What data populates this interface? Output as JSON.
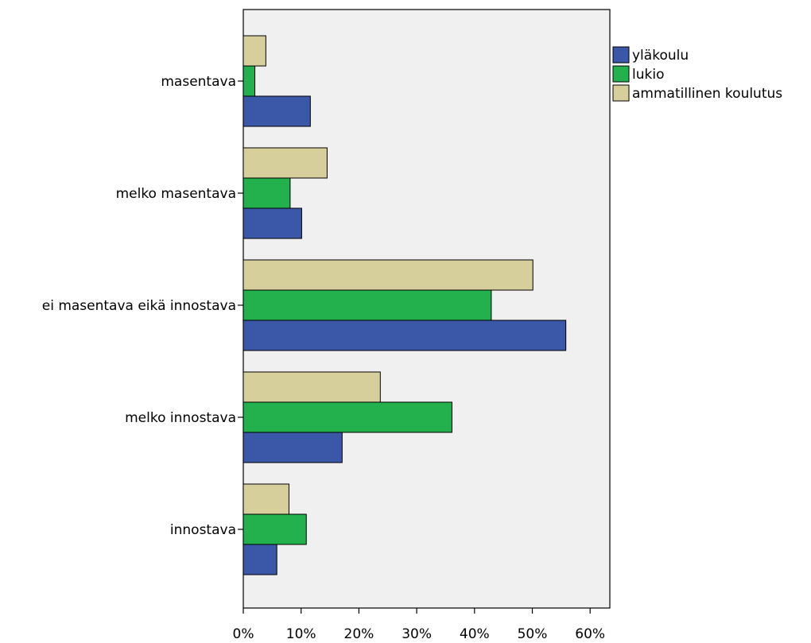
{
  "chart_data": {
    "type": "bar",
    "orientation": "horizontal",
    "categories": [
      "masentava",
      "melko masentava",
      "ei masentava eikä innostava",
      "melko innostava",
      "innostava"
    ],
    "series": [
      {
        "name": "yläkoulu",
        "color": "#3b58a8",
        "values": [
          11.6,
          10.1,
          55.8,
          17.1,
          5.8
        ]
      },
      {
        "name": "lukio",
        "color": "#22b14c",
        "values": [
          2.0,
          8.1,
          42.9,
          36.1,
          10.9
        ]
      },
      {
        "name": "ammatillinen koulutus",
        "color": "#d6cf9b",
        "values": [
          3.9,
          14.5,
          50.1,
          23.7,
          7.9
        ]
      }
    ],
    "x_ticks": [
      "0%",
      "10%",
      "20%",
      "30%",
      "40%",
      "50%",
      "60%"
    ],
    "xlim": [
      0,
      63
    ],
    "plot_background": "#f0f0f0",
    "grid": false,
    "legend_position": "right",
    "title": "",
    "xlabel": "",
    "ylabel": ""
  }
}
